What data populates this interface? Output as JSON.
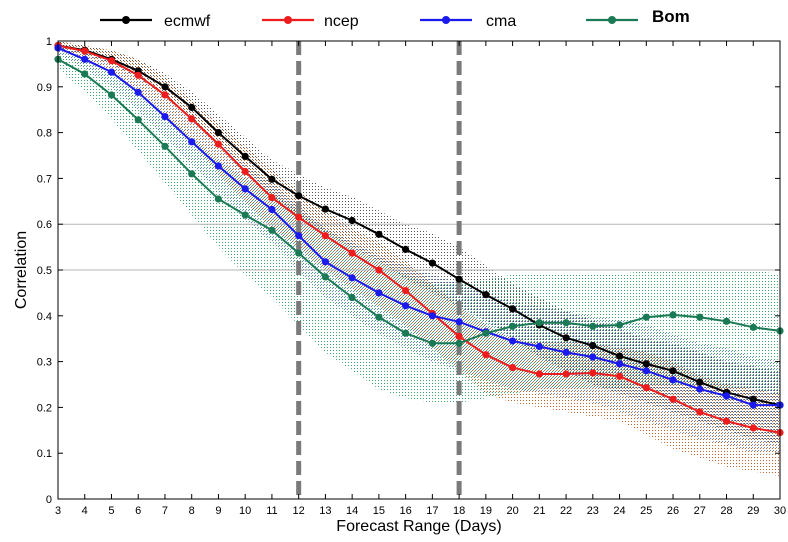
{
  "chart_data": {
    "type": "line",
    "xlabel": "Forecast Range (Days)",
    "ylabel": "Correlation",
    "x": [
      3,
      4,
      5,
      6,
      7,
      8,
      9,
      10,
      11,
      12,
      13,
      14,
      15,
      16,
      17,
      18,
      19,
      20,
      21,
      22,
      23,
      24,
      25,
      26,
      27,
      28,
      29,
      30
    ],
    "xlim": [
      3,
      30
    ],
    "ylim": [
      0,
      1
    ],
    "yticks": [
      0,
      0.1,
      0.2,
      0.3,
      0.4,
      0.5,
      0.6,
      0.7,
      0.8,
      0.9,
      1
    ],
    "ytick_labels": [
      "0",
      "0.1",
      "0.2",
      "0.3",
      "0.4",
      "0.5",
      "0.6",
      "0.7",
      "0.8",
      "0.9",
      "1"
    ],
    "xtick_labels": [
      "3",
      "4",
      "5",
      "6",
      "7",
      "8",
      "9",
      "10",
      "11",
      "12",
      "13",
      "14",
      "15",
      "16",
      "17",
      "18",
      "19",
      "20",
      "21",
      "22",
      "23",
      "24",
      "25",
      "26",
      "27",
      "28",
      "29",
      "30"
    ],
    "horizontal_reference_lines": [
      0.5,
      0.6
    ],
    "vertical_dashed_lines": [
      12,
      18
    ],
    "legend_position": "top",
    "series": [
      {
        "name": "ecmwf",
        "color": "#000000",
        "values": [
          0.99,
          0.98,
          0.96,
          0.935,
          0.9,
          0.855,
          0.8,
          0.748,
          0.698,
          0.662,
          0.633,
          0.608,
          0.578,
          0.545,
          0.515,
          0.48,
          0.446,
          0.415,
          0.38,
          0.352,
          0.335,
          0.312,
          0.295,
          0.28,
          0.255,
          0.233,
          0.218,
          0.205
        ],
        "band_lower": [
          0.98,
          0.97,
          0.95,
          0.92,
          0.88,
          0.83,
          0.77,
          0.71,
          0.66,
          0.61,
          0.58,
          0.55,
          0.52,
          0.48,
          0.45,
          0.42,
          0.39,
          0.35,
          0.31,
          0.28,
          0.25,
          0.23,
          0.21,
          0.19,
          0.17,
          0.15,
          0.13,
          0.12
        ],
        "band_upper": [
          1.0,
          0.99,
          0.98,
          0.96,
          0.93,
          0.89,
          0.84,
          0.79,
          0.74,
          0.71,
          0.68,
          0.66,
          0.63,
          0.6,
          0.58,
          0.55,
          0.51,
          0.47,
          0.44,
          0.41,
          0.39,
          0.37,
          0.35,
          0.34,
          0.32,
          0.3,
          0.29,
          0.28
        ]
      },
      {
        "name": "ncep",
        "color": "#ee1c1c",
        "values": [
          0.99,
          0.978,
          0.957,
          0.925,
          0.882,
          0.83,
          0.775,
          0.715,
          0.658,
          0.615,
          0.575,
          0.537,
          0.5,
          0.455,
          0.405,
          0.355,
          0.315,
          0.287,
          0.273,
          0.273,
          0.275,
          0.268,
          0.243,
          0.218,
          0.19,
          0.17,
          0.155,
          0.145
        ],
        "band_lower": [
          0.98,
          0.96,
          0.93,
          0.89,
          0.84,
          0.78,
          0.71,
          0.65,
          0.59,
          0.55,
          0.5,
          0.46,
          0.42,
          0.38,
          0.33,
          0.28,
          0.23,
          0.21,
          0.2,
          0.19,
          0.18,
          0.17,
          0.14,
          0.11,
          0.09,
          0.07,
          0.06,
          0.05
        ],
        "band_upper": [
          1.0,
          0.99,
          0.98,
          0.96,
          0.92,
          0.87,
          0.82,
          0.77,
          0.72,
          0.67,
          0.63,
          0.59,
          0.56,
          0.52,
          0.47,
          0.42,
          0.38,
          0.35,
          0.34,
          0.34,
          0.34,
          0.33,
          0.32,
          0.3,
          0.27,
          0.25,
          0.24,
          0.23
        ]
      },
      {
        "name": "cma",
        "color": "#1a1aee",
        "values": [
          0.985,
          0.96,
          0.932,
          0.888,
          0.835,
          0.78,
          0.727,
          0.677,
          0.632,
          0.575,
          0.518,
          0.483,
          0.45,
          0.422,
          0.4,
          0.387,
          0.365,
          0.345,
          0.333,
          0.32,
          0.31,
          0.295,
          0.28,
          0.26,
          0.24,
          0.225,
          0.205,
          0.205
        ],
        "band_lower": [
          0.97,
          0.94,
          0.9,
          0.85,
          0.79,
          0.73,
          0.67,
          0.61,
          0.56,
          0.5,
          0.44,
          0.4,
          0.36,
          0.33,
          0.3,
          0.28,
          0.26,
          0.24,
          0.23,
          0.22,
          0.21,
          0.19,
          0.17,
          0.15,
          0.13,
          0.12,
          0.1,
          0.1
        ],
        "band_upper": [
          0.99,
          0.98,
          0.96,
          0.93,
          0.88,
          0.83,
          0.78,
          0.73,
          0.69,
          0.64,
          0.59,
          0.56,
          0.53,
          0.51,
          0.49,
          0.47,
          0.45,
          0.43,
          0.42,
          0.41,
          0.4,
          0.39,
          0.38,
          0.36,
          0.34,
          0.33,
          0.31,
          0.3
        ]
      },
      {
        "name": "Bom",
        "color": "#1a7a55",
        "values": [
          0.96,
          0.928,
          0.882,
          0.828,
          0.77,
          0.71,
          0.655,
          0.62,
          0.587,
          0.537,
          0.485,
          0.44,
          0.397,
          0.362,
          0.34,
          0.34,
          0.362,
          0.377,
          0.385,
          0.385,
          0.377,
          0.38,
          0.397,
          0.402,
          0.397,
          0.388,
          0.375,
          0.367
        ],
        "band_lower": [
          0.94,
          0.89,
          0.83,
          0.76,
          0.69,
          0.62,
          0.55,
          0.49,
          0.44,
          0.38,
          0.32,
          0.28,
          0.24,
          0.22,
          0.21,
          0.21,
          0.22,
          0.23,
          0.24,
          0.24,
          0.24,
          0.24,
          0.25,
          0.25,
          0.25,
          0.24,
          0.24,
          0.23
        ],
        "band_upper": [
          0.98,
          0.96,
          0.93,
          0.89,
          0.84,
          0.79,
          0.74,
          0.7,
          0.67,
          0.63,
          0.59,
          0.55,
          0.52,
          0.49,
          0.47,
          0.47,
          0.48,
          0.49,
          0.49,
          0.49,
          0.49,
          0.49,
          0.5,
          0.5,
          0.5,
          0.5,
          0.5,
          0.49
        ]
      }
    ]
  }
}
